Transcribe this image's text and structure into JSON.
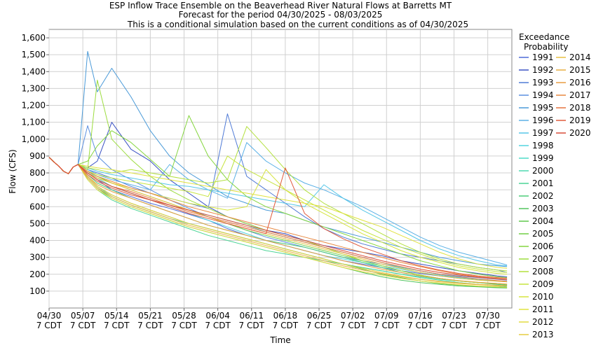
{
  "chart_data": {
    "type": "line",
    "title": "ESP Inflow Trace Ensemble on the Beaverhead River Natural Flows at Barretts MT",
    "subtitle": "Forecast for the period 04/30/2025 - 08/03/2025",
    "subtitle2": "This is a conditional simulation based on the current conditions as of 04/30/2025",
    "xlabel": "Time",
    "ylabel": "Flow (CFS)",
    "ylim": [
      0,
      1650
    ],
    "yticks": [
      "100",
      "200",
      "300",
      "400",
      "500",
      "600",
      "700",
      "800",
      "900",
      "1,000",
      "1,100",
      "1,200",
      "1,300",
      "1,400",
      "1,500",
      "1,600"
    ],
    "xlim": [
      "2025-04-30",
      "2025-08-04"
    ],
    "xticks": [
      {
        "d1": "04/30",
        "d2": "7 CDT"
      },
      {
        "d1": "05/07",
        "d2": "7 CDT"
      },
      {
        "d1": "05/14",
        "d2": "7 CDT"
      },
      {
        "d1": "05/21",
        "d2": "7 CDT"
      },
      {
        "d1": "05/28",
        "d2": "7 CDT"
      },
      {
        "d1": "06/04",
        "d2": "7 CDT"
      },
      {
        "d1": "06/11",
        "d2": "7 CDT"
      },
      {
        "d1": "06/18",
        "d2": "7 CDT"
      },
      {
        "d1": "06/25",
        "d2": "7 CDT"
      },
      {
        "d1": "07/02",
        "d2": "7 CDT"
      },
      {
        "d1": "07/09",
        "d2": "7 CDT"
      },
      {
        "d1": "07/16",
        "d2": "7 CDT"
      },
      {
        "d1": "07/23",
        "d2": "7 CDT"
      },
      {
        "d1": "07/30",
        "d2": "7 CDT"
      }
    ],
    "grid": true,
    "legend_title1": "Exceedance",
    "legend_title2": "Probability",
    "legend_placement": "right",
    "x": [
      "2025-04-30",
      "2025-05-01",
      "2025-05-02",
      "2025-05-03",
      "2025-05-04",
      "2025-05-05",
      "2025-05-06",
      "2025-05-08",
      "2025-05-10",
      "2025-05-13",
      "2025-05-17",
      "2025-05-21",
      "2025-05-25",
      "2025-05-29",
      "2025-06-02",
      "2025-06-06",
      "2025-06-10",
      "2025-06-14",
      "2025-06-18",
      "2025-06-22",
      "2025-06-26",
      "2025-06-30",
      "2025-07-04",
      "2025-07-08",
      "2025-07-12",
      "2025-07-16",
      "2025-07-20",
      "2025-07-24",
      "2025-07-28",
      "2025-08-01",
      "2025-08-03"
    ],
    "series": [
      {
        "name": "1991",
        "color": "#4d6bd9",
        "values": [
          893,
          865,
          840,
          810,
          795,
          835,
          850,
          800,
          760,
          700,
          660,
          620,
          590,
          555,
          520,
          470,
          430,
          400,
          370,
          340,
          310,
          280,
          260,
          240,
          220,
          205,
          190,
          180,
          170,
          160,
          155
        ]
      },
      {
        "name": "1992",
        "color": "#3b52c4",
        "values": [
          893,
          865,
          840,
          810,
          795,
          835,
          850,
          830,
          870,
          1100,
          940,
          870,
          760,
          680,
          600,
          540,
          500,
          460,
          440,
          400,
          370,
          350,
          330,
          310,
          280,
          260,
          240,
          220,
          205,
          190,
          185
        ]
      },
      {
        "name": "1993",
        "color": "#4f7ad6",
        "values": [
          893,
          865,
          840,
          810,
          795,
          835,
          850,
          820,
          800,
          770,
          720,
          680,
          650,
          620,
          590,
          1150,
          780,
          700,
          620,
          540,
          470,
          420,
          380,
          350,
          320,
          300,
          280,
          260,
          240,
          225,
          210
        ]
      },
      {
        "name": "1994",
        "color": "#5b8fe0",
        "values": [
          893,
          865,
          840,
          810,
          795,
          835,
          850,
          1080,
          900,
          820,
          760,
          700,
          640,
          590,
          540,
          500,
          460,
          420,
          390,
          360,
          330,
          300,
          280,
          260,
          240,
          220,
          200,
          190,
          180,
          170,
          165
        ]
      },
      {
        "name": "1995",
        "color": "#4a9ad8",
        "values": [
          893,
          865,
          840,
          810,
          795,
          835,
          850,
          1520,
          1280,
          1420,
          1250,
          1050,
          900,
          800,
          730,
          660,
          620,
          580,
          560,
          520,
          480,
          450,
          420,
          390,
          360,
          330,
          300,
          280,
          260,
          250,
          245
        ]
      },
      {
        "name": "1996",
        "color": "#5ab0e6",
        "values": [
          893,
          865,
          840,
          810,
          795,
          835,
          850,
          820,
          790,
          760,
          730,
          700,
          850,
          760,
          700,
          650,
          980,
          870,
          800,
          740,
          700,
          650,
          600,
          540,
          480,
          420,
          370,
          330,
          300,
          270,
          255
        ]
      },
      {
        "name": "1997",
        "color": "#56c6e8",
        "values": [
          893,
          865,
          840,
          810,
          795,
          835,
          850,
          830,
          810,
          790,
          770,
          750,
          730,
          720,
          700,
          680,
          660,
          640,
          620,
          600,
          730,
          650,
          580,
          520,
          460,
          400,
          350,
          310,
          280,
          255,
          250
        ]
      },
      {
        "name": "1998",
        "color": "#52d4df",
        "values": [
          893,
          865,
          840,
          810,
          795,
          835,
          850,
          810,
          770,
          720,
          680,
          640,
          600,
          560,
          520,
          480,
          440,
          400,
          370,
          340,
          310,
          290,
          270,
          250,
          230,
          210,
          195,
          180,
          170,
          160,
          155
        ]
      },
      {
        "name": "1999",
        "color": "#4edbc9",
        "values": [
          893,
          865,
          840,
          810,
          795,
          835,
          850,
          800,
          760,
          720,
          680,
          640,
          610,
          580,
          550,
          520,
          490,
          450,
          420,
          390,
          360,
          330,
          300,
          270,
          240,
          220,
          200,
          185,
          170,
          160,
          155
        ]
      },
      {
        "name": "2000",
        "color": "#4ed8b0",
        "values": [
          893,
          865,
          840,
          810,
          795,
          835,
          850,
          780,
          720,
          660,
          610,
          570,
          530,
          500,
          470,
          440,
          410,
          380,
          350,
          320,
          290,
          260,
          240,
          220,
          200,
          185,
          170,
          160,
          150,
          140,
          135
        ]
      },
      {
        "name": "2001",
        "color": "#4bd496",
        "values": [
          893,
          865,
          840,
          810,
          795,
          835,
          850,
          760,
          700,
          640,
          590,
          550,
          510,
          470,
          430,
          400,
          370,
          340,
          320,
          300,
          280,
          260,
          240,
          220,
          200,
          180,
          165,
          150,
          140,
          130,
          125
        ]
      },
      {
        "name": "2002",
        "color": "#4ccc78",
        "values": [
          893,
          865,
          840,
          810,
          795,
          835,
          850,
          790,
          740,
          700,
          650,
          610,
          570,
          530,
          490,
          460,
          430,
          400,
          380,
          360,
          330,
          300,
          270,
          240,
          210,
          190,
          175,
          160,
          150,
          140,
          135
        ]
      },
      {
        "name": "2003",
        "color": "#52c45e",
        "values": [
          893,
          865,
          840,
          810,
          795,
          835,
          850,
          770,
          710,
          650,
          600,
          560,
          520,
          480,
          450,
          420,
          390,
          360,
          330,
          300,
          270,
          240,
          210,
          185,
          165,
          150,
          140,
          130,
          125,
          120,
          118
        ]
      },
      {
        "name": "2004",
        "color": "#5fc84c",
        "values": [
          893,
          865,
          840,
          810,
          795,
          835,
          850,
          780,
          720,
          670,
          620,
          580,
          540,
          500,
          470,
          440,
          410,
          380,
          350,
          320,
          290,
          260,
          230,
          200,
          180,
          160,
          145,
          135,
          128,
          122,
          120
        ]
      },
      {
        "name": "2005",
        "color": "#70cf44",
        "values": [
          893,
          865,
          840,
          810,
          795,
          835,
          850,
          810,
          780,
          740,
          700,
          660,
          620,
          580,
          540,
          500,
          460,
          430,
          400,
          370,
          340,
          310,
          280,
          250,
          220,
          195,
          175,
          160,
          150,
          145,
          140
        ]
      },
      {
        "name": "2006",
        "color": "#86d640",
        "values": [
          893,
          865,
          840,
          810,
          795,
          835,
          850,
          870,
          960,
          1050,
          980,
          880,
          780,
          1140,
          900,
          760,
          660,
          600,
          560,
          520,
          480,
          440,
          400,
          360,
          320,
          280,
          250,
          220,
          200,
          185,
          180
        ]
      },
      {
        "name": "2007",
        "color": "#9cdc3e",
        "values": [
          893,
          865,
          840,
          810,
          795,
          835,
          850,
          820,
          1350,
          1000,
          880,
          780,
          700,
          640,
          590,
          540,
          500,
          460,
          430,
          400,
          360,
          320,
          280,
          250,
          220,
          195,
          175,
          160,
          150,
          145,
          140
        ]
      },
      {
        "name": "2008",
        "color": "#b3e03e",
        "values": [
          893,
          865,
          840,
          810,
          795,
          835,
          850,
          830,
          820,
          800,
          820,
          800,
          780,
          760,
          740,
          760,
          1075,
          950,
          820,
          700,
          620,
          560,
          500,
          440,
          380,
          330,
          290,
          260,
          240,
          225,
          220
        ]
      },
      {
        "name": "2009",
        "color": "#c6e43f",
        "values": [
          893,
          865,
          840,
          810,
          795,
          835,
          850,
          810,
          790,
          770,
          750,
          730,
          710,
          690,
          660,
          900,
          820,
          760,
          700,
          640,
          580,
          520,
          460,
          410,
          360,
          320,
          280,
          250,
          230,
          215,
          210
        ]
      },
      {
        "name": "2010",
        "color": "#d6e43f",
        "values": [
          893,
          865,
          840,
          810,
          795,
          835,
          850,
          800,
          770,
          740,
          710,
          680,
          650,
          620,
          600,
          580,
          600,
          820,
          700,
          620,
          560,
          500,
          440,
          390,
          340,
          300,
          270,
          240,
          220,
          205,
          200
        ]
      },
      {
        "name": "2011",
        "color": "#e0e23f",
        "values": [
          893,
          865,
          840,
          810,
          795,
          835,
          850,
          840,
          830,
          820,
          800,
          780,
          760,
          740,
          720,
          700,
          680,
          660,
          640,
          620,
          600,
          560,
          520,
          480,
          430,
          380,
          330,
          290,
          260,
          240,
          235
        ]
      },
      {
        "name": "2012",
        "color": "#e3da40",
        "values": [
          893,
          865,
          840,
          810,
          795,
          835,
          850,
          760,
          700,
          650,
          600,
          560,
          520,
          480,
          450,
          420,
          390,
          360,
          330,
          300,
          270,
          240,
          215,
          195,
          175,
          160,
          148,
          138,
          130,
          125,
          122
        ]
      },
      {
        "name": "2013",
        "color": "#e6cc40",
        "values": [
          893,
          865,
          840,
          810,
          795,
          835,
          850,
          780,
          720,
          670,
          620,
          580,
          540,
          500,
          470,
          440,
          410,
          380,
          350,
          320,
          290,
          260,
          235,
          210,
          190,
          170,
          155,
          145,
          138,
          132,
          130
        ]
      },
      {
        "name": "2014",
        "color": "#e8bf40",
        "values": [
          893,
          865,
          840,
          810,
          795,
          835,
          850,
          800,
          770,
          740,
          700,
          660,
          620,
          580,
          540,
          500,
          470,
          440,
          410,
          380,
          350,
          320,
          290,
          260,
          235,
          210,
          190,
          175,
          165,
          158,
          155
        ]
      },
      {
        "name": "2015",
        "color": "#e8ae40",
        "values": [
          893,
          865,
          840,
          810,
          795,
          835,
          850,
          770,
          710,
          660,
          610,
          570,
          530,
          490,
          460,
          430,
          400,
          370,
          340,
          310,
          280,
          250,
          225,
          205,
          185,
          170,
          158,
          148,
          140,
          135,
          132
        ]
      },
      {
        "name": "2016",
        "color": "#e89c40",
        "values": [
          893,
          865,
          840,
          810,
          795,
          835,
          850,
          780,
          730,
          690,
          650,
          610,
          570,
          530,
          490,
          460,
          430,
          400,
          370,
          340,
          310,
          280,
          255,
          230,
          210,
          190,
          175,
          162,
          152,
          145,
          142
        ]
      },
      {
        "name": "2017",
        "color": "#e88840",
        "values": [
          893,
          865,
          840,
          810,
          795,
          835,
          850,
          810,
          780,
          750,
          710,
          680,
          640,
          600,
          570,
          540,
          510,
          480,
          450,
          420,
          390,
          360,
          330,
          300,
          270,
          245,
          220,
          200,
          185,
          175,
          170
        ]
      },
      {
        "name": "2018",
        "color": "#e6723f",
        "values": [
          893,
          865,
          840,
          810,
          795,
          835,
          850,
          800,
          760,
          720,
          690,
          650,
          610,
          570,
          540,
          510,
          480,
          450,
          420,
          390,
          360,
          330,
          300,
          270,
          245,
          220,
          200,
          185,
          172,
          162,
          158
        ]
      },
      {
        "name": "2019",
        "color": "#e05a3c",
        "values": [
          893,
          865,
          840,
          810,
          795,
          835,
          850,
          790,
          750,
          710,
          670,
          640,
          600,
          560,
          530,
          500,
          470,
          440,
          830,
          560,
          470,
          410,
          360,
          320,
          280,
          250,
          225,
          205,
          190,
          180,
          176
        ]
      },
      {
        "name": "2020",
        "color": "#d94a38",
        "values": [
          893,
          865,
          840,
          810,
          795,
          835,
          850,
          800,
          760,
          720,
          680,
          640,
          610,
          580,
          550,
          520,
          490,
          460,
          430,
          400,
          370,
          340,
          310,
          280,
          255,
          230,
          210,
          195,
          182,
          172,
          168
        ]
      }
    ]
  }
}
